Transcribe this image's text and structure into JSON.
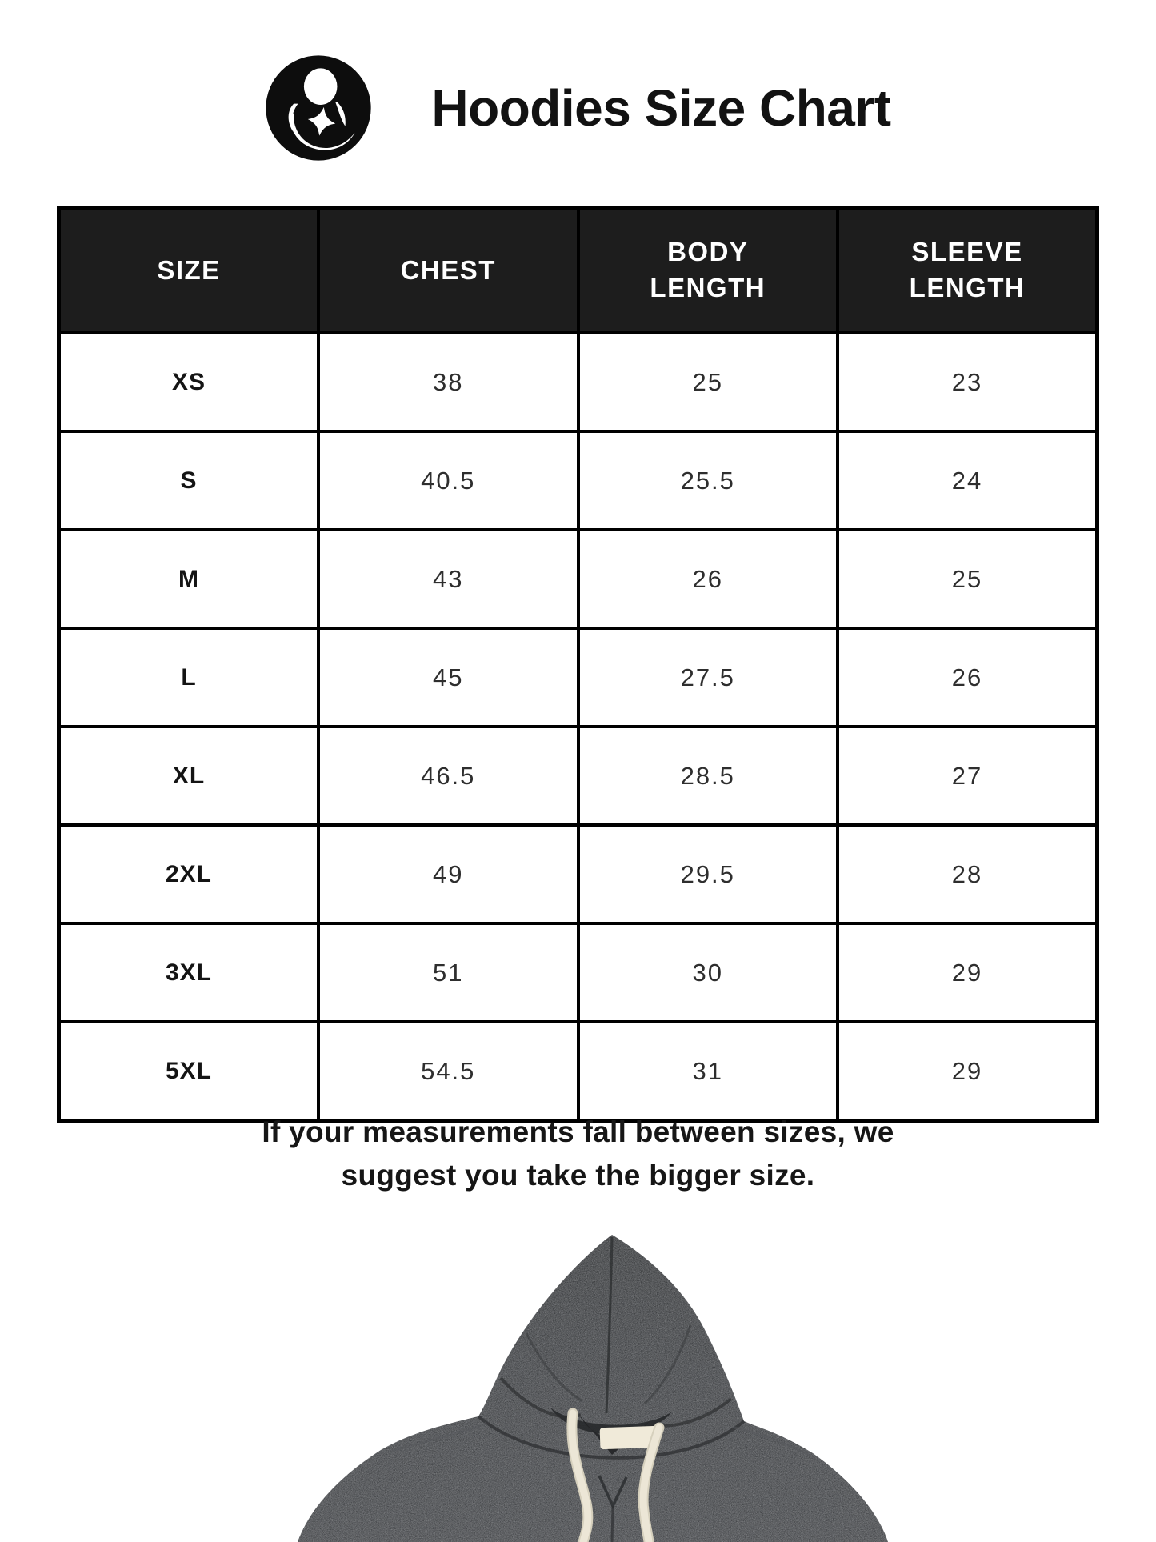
{
  "header": {
    "title": "Hoodies Size Chart",
    "logo_icon": "brand-logo-hooded-figure-with-star",
    "logo_color": "#0d0d0d"
  },
  "size_table": {
    "columns": [
      "SIZE",
      "CHEST",
      "BODY\nLENGTH",
      "SLEEVE\nLENGTH"
    ],
    "rows": [
      {
        "size": "XS",
        "chest": "38",
        "body_length": "25",
        "sleeve_length": "23"
      },
      {
        "size": "S",
        "chest": "40.5",
        "body_length": "25.5",
        "sleeve_length": "24"
      },
      {
        "size": "M",
        "chest": "43",
        "body_length": "26",
        "sleeve_length": "25"
      },
      {
        "size": "L",
        "chest": "45",
        "body_length": "27.5",
        "sleeve_length": "26"
      },
      {
        "size": "XL",
        "chest": "46.5",
        "body_length": "28.5",
        "sleeve_length": "27"
      },
      {
        "size": "2XL",
        "chest": "49",
        "body_length": "29.5",
        "sleeve_length": "28"
      },
      {
        "size": "3XL",
        "chest": "51",
        "body_length": "30",
        "sleeve_length": "29"
      },
      {
        "size": "5XL",
        "chest": "54.5",
        "body_length": "31",
        "sleeve_length": "29"
      }
    ],
    "header_bg": "#1d1d1d",
    "header_text_color": "#ffffff",
    "border_color": "#000000"
  },
  "note": {
    "text": "If your measurements fall between sizes, we\nsuggest you take the bigger size."
  },
  "product_image": {
    "description": "dark heather gray pullover hoodie with cream drawstrings",
    "hoodie_color": "#404245",
    "hood_color": "#3a3c3e",
    "drawstring_color": "#ece6d6",
    "tag_color": "#f0ead9"
  },
  "chart_data": {
    "type": "table",
    "title": "Hoodies Size Chart",
    "columns": [
      "SIZE",
      "CHEST",
      "BODY LENGTH",
      "SLEEVE LENGTH"
    ],
    "rows": [
      [
        "XS",
        38,
        25,
        23
      ],
      [
        "S",
        40.5,
        25.5,
        24
      ],
      [
        "M",
        43,
        26,
        25
      ],
      [
        "L",
        45,
        27.5,
        26
      ],
      [
        "XL",
        46.5,
        28.5,
        27
      ],
      [
        "2XL",
        49,
        29.5,
        28
      ],
      [
        "3XL",
        51,
        30,
        29
      ],
      [
        "5XL",
        54.5,
        31,
        29
      ]
    ],
    "footnote": "If your measurements fall between sizes, we suggest you take the bigger size."
  }
}
